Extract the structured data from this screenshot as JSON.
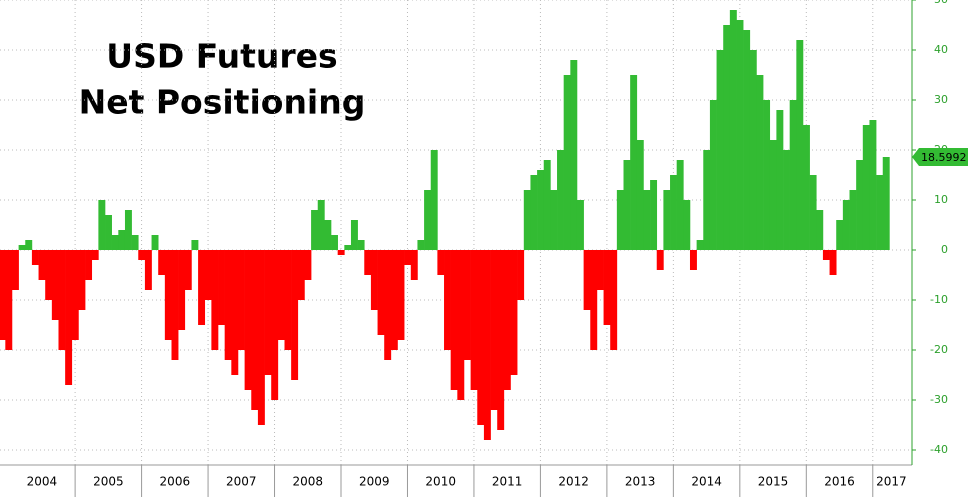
{
  "chart_data": {
    "type": "bar",
    "title": [
      "USD Futures",
      "Net Positioning"
    ],
    "pos_color": "#33bb33",
    "neg_color": "#ff0000",
    "xlim": [
      2003.87,
      2017.56
    ],
    "xticks": [
      2005,
      2006,
      2007,
      2008,
      2009,
      2010,
      2011,
      2012,
      2013,
      2014,
      2015,
      2016,
      2017
    ],
    "categories": [
      "2004",
      "2005",
      "2006",
      "2007",
      "2008",
      "2009",
      "2010",
      "2011",
      "2012",
      "2013",
      "2014",
      "2015",
      "2016",
      "2017"
    ],
    "ylim": [
      -43,
      50
    ],
    "yticks": [
      50,
      40,
      30,
      20,
      10,
      0,
      -10,
      -20,
      -30,
      -40
    ],
    "grid": true,
    "x": [
      2003.9,
      2004.0,
      2004.1,
      2004.2,
      2004.3,
      2004.4,
      2004.5,
      2004.6,
      2004.7,
      2004.8,
      2004.9,
      2005.0,
      2005.1,
      2005.2,
      2005.3,
      2005.4,
      2005.5,
      2005.6,
      2005.7,
      2005.8,
      2005.9,
      2006.0,
      2006.1,
      2006.2,
      2006.3,
      2006.4,
      2006.5,
      2006.6,
      2006.7,
      2006.8,
      2006.9,
      2007.0,
      2007.1,
      2007.2,
      2007.3,
      2007.4,
      2007.5,
      2007.6,
      2007.7,
      2007.8,
      2007.9,
      2008.0,
      2008.1,
      2008.2,
      2008.3,
      2008.4,
      2008.5,
      2008.6,
      2008.7,
      2008.8,
      2008.9,
      2009.0,
      2009.1,
      2009.2,
      2009.3,
      2009.4,
      2009.5,
      2009.6,
      2009.7,
      2009.8,
      2009.9,
      2010.0,
      2010.1,
      2010.2,
      2010.3,
      2010.4,
      2010.5,
      2010.6,
      2010.7,
      2010.8,
      2010.9,
      2011.0,
      2011.1,
      2011.2,
      2011.3,
      2011.4,
      2011.5,
      2011.6,
      2011.7,
      2011.8,
      2011.9,
      2012.0,
      2012.1,
      2012.2,
      2012.3,
      2012.4,
      2012.5,
      2012.6,
      2012.7,
      2012.8,
      2012.9,
      2013.0,
      2013.1,
      2013.2,
      2013.3,
      2013.4,
      2013.5,
      2013.6,
      2013.7,
      2013.8,
      2013.9,
      2014.0,
      2014.1,
      2014.2,
      2014.3,
      2014.4,
      2014.5,
      2014.6,
      2014.7,
      2014.8,
      2014.9,
      2015.0,
      2015.1,
      2015.2,
      2015.3,
      2015.4,
      2015.5,
      2015.6,
      2015.7,
      2015.8,
      2015.9,
      2016.0,
      2016.1,
      2016.2,
      2016.3,
      2016.4,
      2016.5,
      2016.6,
      2016.7,
      2016.8,
      2016.9,
      2017.0,
      2017.1,
      2017.2
    ],
    "values": [
      -18,
      -20,
      -8,
      1,
      2,
      -3,
      -6,
      -10,
      -14,
      -20,
      -27,
      -18,
      -12,
      -6,
      -2,
      10,
      7,
      3,
      4,
      8,
      3,
      -2,
      -8,
      3,
      -5,
      -18,
      -22,
      -16,
      -8,
      2,
      -15,
      -10,
      -20,
      -15,
      -22,
      -25,
      -20,
      -28,
      -32,
      -35,
      -25,
      -30,
      -18,
      -20,
      -26,
      -10,
      -6,
      8,
      10,
      6,
      3,
      -1,
      1,
      6,
      2,
      -5,
      -12,
      -17,
      -22,
      -20,
      -18,
      -3,
      -6,
      2,
      12,
      20,
      -5,
      -20,
      -28,
      -30,
      -22,
      -28,
      -35,
      -38,
      -32,
      -36,
      -28,
      -25,
      -10,
      12,
      15,
      16,
      18,
      12,
      20,
      35,
      38,
      10,
      -12,
      -20,
      -8,
      -15,
      -20,
      12,
      18,
      35,
      22,
      12,
      14,
      -4,
      12,
      15,
      18,
      10,
      -4,
      2,
      20,
      30,
      40,
      45,
      48,
      46,
      44,
      40,
      35,
      30,
      22,
      28,
      20,
      30,
      42,
      25,
      15,
      8,
      -2,
      -5,
      6,
      10,
      12,
      18,
      25,
      26,
      15,
      18.5992
    ]
  }
}
